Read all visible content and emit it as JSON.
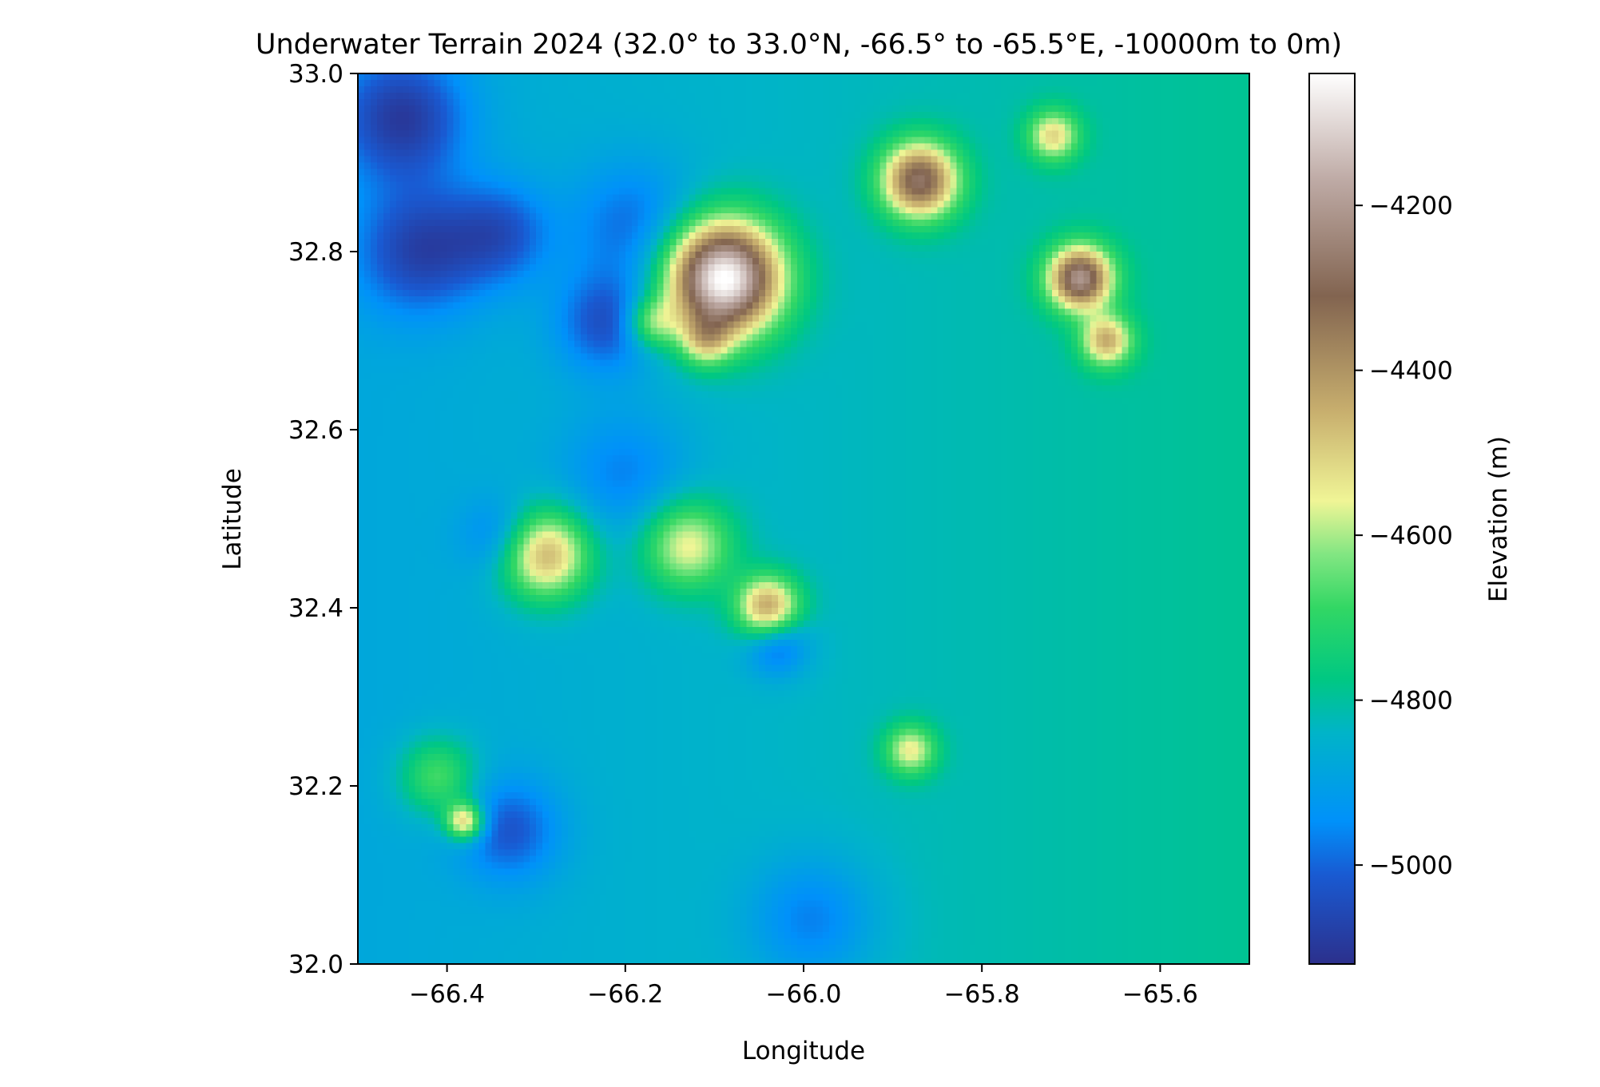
{
  "chart_data": {
    "type": "heatmap",
    "title": "Underwater Terrain 2024 (32.0° to 33.0°N, -66.5° to -65.5°E, -10000m to 0m)",
    "xlabel": "Longitude",
    "ylabel": "Latitude",
    "colorbar_label": "Elevation (m)",
    "colormap": "terrain",
    "xlim": [
      -66.5,
      -65.5
    ],
    "ylim": [
      32.0,
      33.0
    ],
    "clim": [
      -5120,
      -4040
    ],
    "x_ticks": [
      -66.4,
      -66.2,
      -66.0,
      -65.8,
      -65.6
    ],
    "x_tick_labels": [
      "−66.4",
      "−66.2",
      "−66.0",
      "−65.8",
      "−65.6"
    ],
    "y_ticks": [
      32.0,
      32.2,
      32.4,
      32.6,
      32.8,
      33.0
    ],
    "y_tick_labels": [
      "32.0",
      "32.2",
      "32.4",
      "32.6",
      "32.8",
      "33.0"
    ],
    "colorbar_ticks": [
      -5000,
      -4800,
      -4600,
      -4400,
      -4200
    ],
    "colorbar_tick_labels": [
      "−5000",
      "−4800",
      "−4600",
      "−4400",
      "−4200"
    ],
    "base_elevation": -4880,
    "features": [
      {
        "lon": -66.09,
        "lat": 32.77,
        "elevation": -4060,
        "radius": 0.045
      },
      {
        "lon": -65.87,
        "lat": 32.88,
        "elevation": -4330,
        "radius": 0.03
      },
      {
        "lon": -65.69,
        "lat": 32.77,
        "elevation": -4280,
        "radius": 0.025
      },
      {
        "lon": -65.66,
        "lat": 32.7,
        "elevation": -4520,
        "radius": 0.02
      },
      {
        "lon": -65.72,
        "lat": 32.93,
        "elevation": -4580,
        "radius": 0.02
      },
      {
        "lon": -66.29,
        "lat": 32.46,
        "elevation": -4470,
        "radius": 0.035
      },
      {
        "lon": -66.13,
        "lat": 32.47,
        "elevation": -4580,
        "radius": 0.035
      },
      {
        "lon": -66.04,
        "lat": 32.4,
        "elevation": -4450,
        "radius": 0.025
      },
      {
        "lon": -66.38,
        "lat": 32.16,
        "elevation": -4500,
        "radius": 0.015
      },
      {
        "lon": -66.41,
        "lat": 32.21,
        "elevation": -4680,
        "radius": 0.03
      },
      {
        "lon": -65.88,
        "lat": 32.24,
        "elevation": -4600,
        "radius": 0.02
      },
      {
        "lon": -66.17,
        "lat": 32.72,
        "elevation": -4650,
        "radius": 0.02
      },
      {
        "lon": -66.11,
        "lat": 32.7,
        "elevation": -4650,
        "radius": 0.02
      },
      {
        "lon": -66.43,
        "lat": 32.8,
        "elevation": -5080,
        "radius": 0.05
      },
      {
        "lon": -66.45,
        "lat": 32.95,
        "elevation": -5100,
        "radius": 0.05
      },
      {
        "lon": -66.22,
        "lat": 32.72,
        "elevation": -5060,
        "radius": 0.04
      },
      {
        "lon": -66.34,
        "lat": 32.82,
        "elevation": -5040,
        "radius": 0.04
      },
      {
        "lon": -66.19,
        "lat": 32.83,
        "elevation": -5020,
        "radius": 0.05
      },
      {
        "lon": -66.03,
        "lat": 32.36,
        "elevation": -5060,
        "radius": 0.025
      },
      {
        "lon": -66.33,
        "lat": 32.15,
        "elevation": -5040,
        "radius": 0.04
      },
      {
        "lon": -65.99,
        "lat": 32.05,
        "elevation": -5010,
        "radius": 0.05
      },
      {
        "lon": -66.2,
        "lat": 32.55,
        "elevation": -4990,
        "radius": 0.05
      },
      {
        "lon": -66.34,
        "lat": 32.48,
        "elevation": -5000,
        "radius": 0.03
      }
    ]
  }
}
